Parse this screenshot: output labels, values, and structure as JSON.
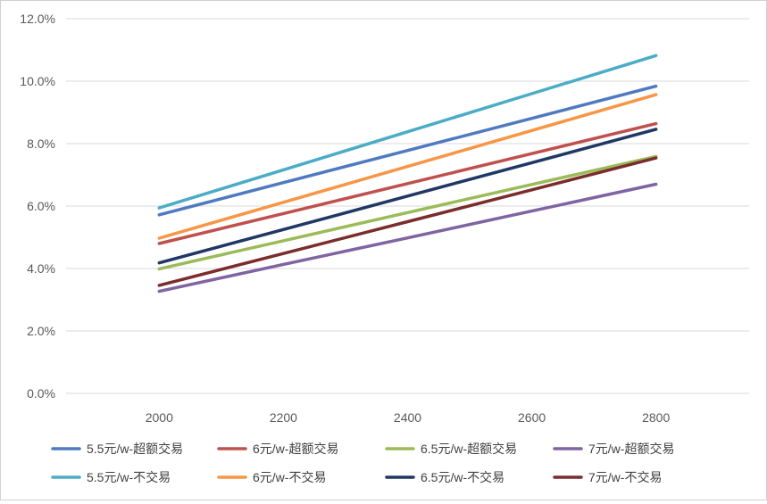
{
  "chart_data": {
    "type": "line",
    "title": "",
    "xlabel": "",
    "ylabel": "",
    "x": [
      2000,
      2200,
      2400,
      2600,
      2800
    ],
    "x_tick_labels": [
      "2000",
      "2200",
      "2400",
      "2600",
      "2800"
    ],
    "xlim": [
      1850,
      2950
    ],
    "ylim": [
      0.0,
      0.12
    ],
    "y_ticks": [
      0.0,
      0.02,
      0.04,
      0.06,
      0.08,
      0.1,
      0.12
    ],
    "y_tick_labels": [
      "0.0%",
      "2.0%",
      "4.0%",
      "6.0%",
      "8.0%",
      "10.0%",
      "12.0%"
    ],
    "grid": "horizontal",
    "legend_position": "bottom",
    "series": [
      {
        "name": "5.5元/w-超额交易",
        "color": "#4f7ac0",
        "values": [
          0.0572,
          0.0675,
          0.0778,
          0.0881,
          0.0984
        ]
      },
      {
        "name": "6元/w-超额交易",
        "color": "#c0504d",
        "values": [
          0.048,
          0.0576,
          0.0672,
          0.0768,
          0.0864
        ]
      },
      {
        "name": "6.5元/w-超额交易",
        "color": "#9bbb59",
        "values": [
          0.0399,
          0.0489,
          0.0579,
          0.0669,
          0.0759
        ]
      },
      {
        "name": "7元/w-超额交易",
        "color": "#8064a2",
        "values": [
          0.0327,
          0.0413,
          0.0498,
          0.0584,
          0.067
        ]
      },
      {
        "name": "5.5元/w-不交易",
        "color": "#4bacc6",
        "values": [
          0.0594,
          0.0716,
          0.0838,
          0.096,
          0.1082
        ]
      },
      {
        "name": "6元/w-不交易",
        "color": "#f79646",
        "values": [
          0.0497,
          0.0612,
          0.0727,
          0.0842,
          0.0957
        ]
      },
      {
        "name": "6.5元/w-不交易",
        "color": "#1f3864",
        "values": [
          0.0418,
          0.0525,
          0.0632,
          0.0739,
          0.0846
        ]
      },
      {
        "name": "7元/w-不交易",
        "color": "#7b2c2c",
        "values": [
          0.0346,
          0.0448,
          0.055,
          0.0652,
          0.0754
        ]
      }
    ]
  }
}
